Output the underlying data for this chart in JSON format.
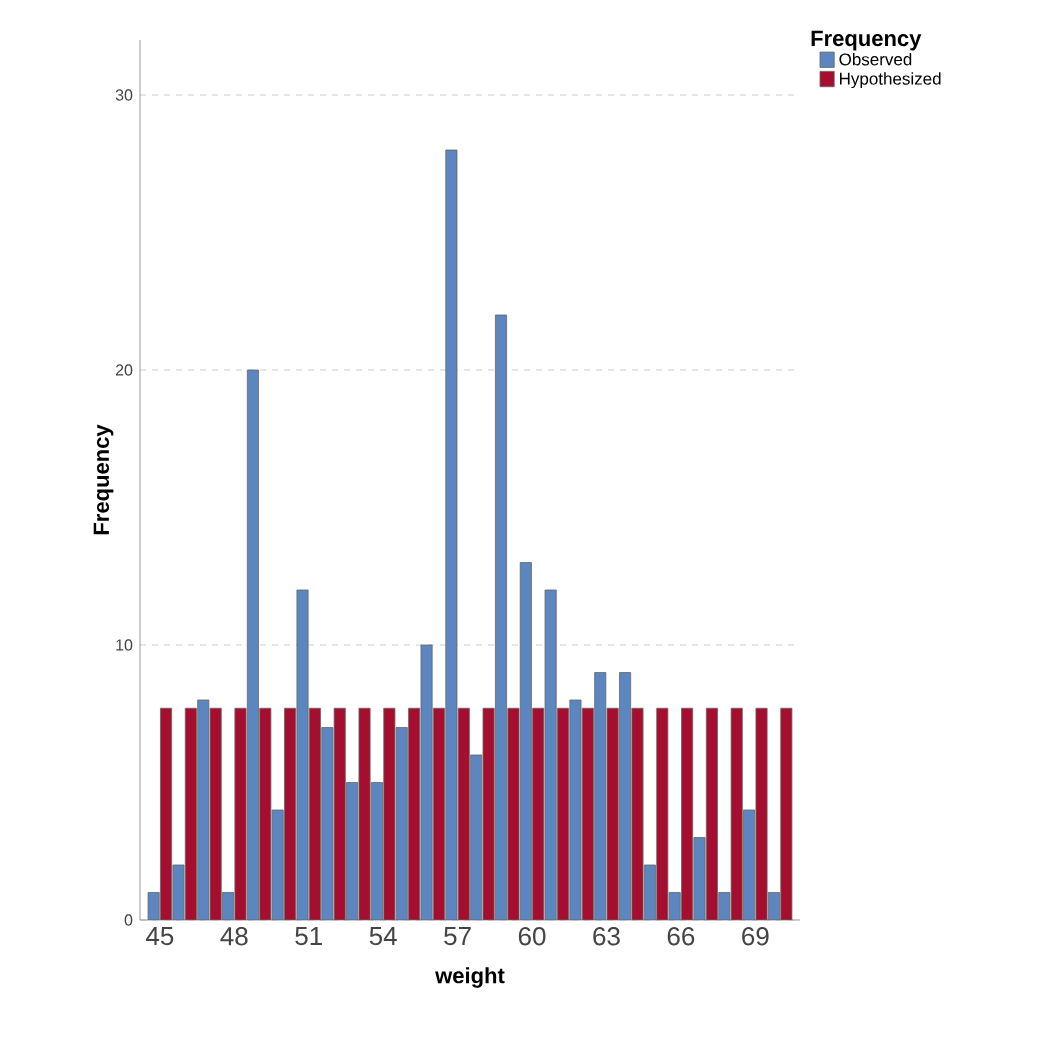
{
  "chart_data": {
    "type": "bar",
    "xlabel": "weight",
    "ylabel": "Frequency",
    "legend_title": "Frequency",
    "categories": [
      "45",
      null,
      null,
      "48",
      null,
      null,
      "51",
      null,
      null,
      "54",
      null,
      null,
      "57",
      null,
      null,
      "60",
      null,
      null,
      "63",
      null,
      null,
      "66",
      null,
      null,
      "69",
      null
    ],
    "series": [
      {
        "name": "Observed",
        "color": "#5b86c0",
        "values": [
          1,
          2,
          8,
          1,
          20,
          4,
          12,
          7,
          5,
          5,
          7,
          10,
          28,
          6,
          22,
          13,
          12,
          8,
          9,
          9,
          2,
          1,
          3,
          1,
          4,
          1
        ]
      },
      {
        "name": "Hypothesized",
        "color": "#a50e2e",
        "values": [
          7.7,
          7.7,
          7.7,
          7.7,
          7.7,
          7.7,
          7.7,
          7.7,
          7.7,
          7.7,
          7.7,
          7.7,
          7.7,
          7.7,
          7.7,
          7.7,
          7.7,
          7.7,
          7.7,
          7.7,
          7.7,
          7.7,
          7.7,
          7.7,
          7.7,
          7.7
        ]
      }
    ],
    "ylim": [
      0,
      32
    ],
    "yticks": [
      0,
      10,
      20,
      30
    ],
    "grid": "y",
    "legend": "top right"
  }
}
